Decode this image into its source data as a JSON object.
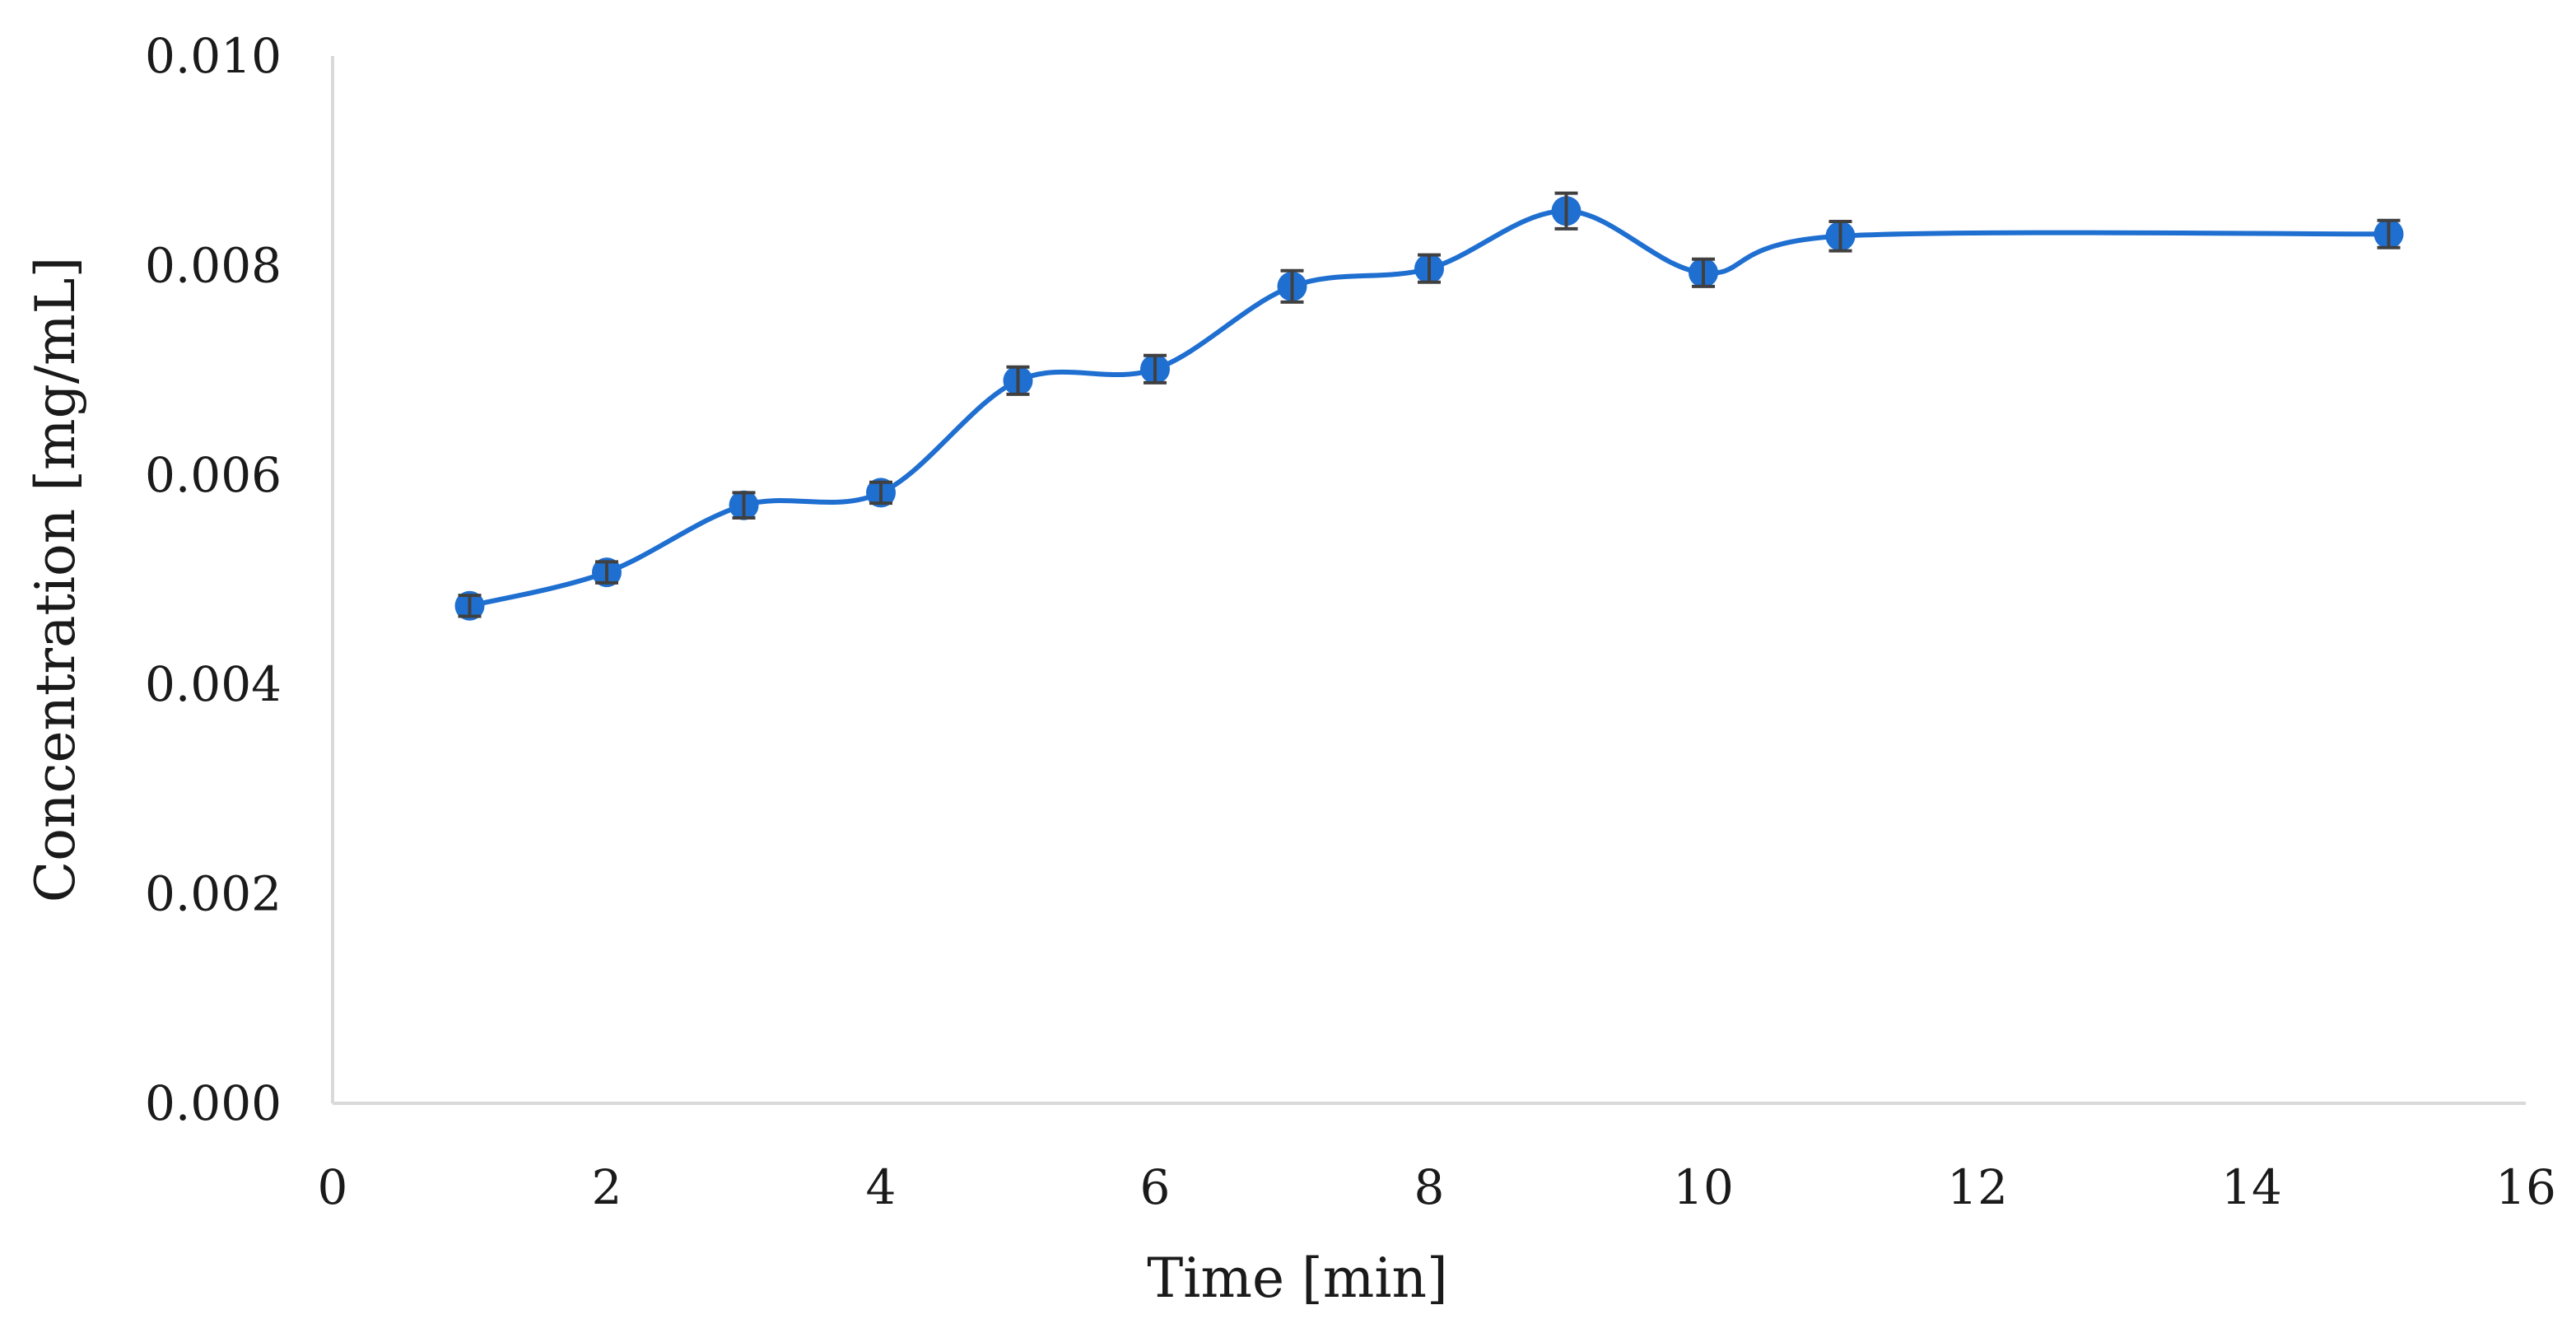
{
  "chart_data": {
    "type": "line",
    "title": "",
    "xlabel": "Time [min]",
    "ylabel": "Concentration [mg/mL]",
    "xlim": [
      0,
      16
    ],
    "ylim": [
      0.0,
      0.01
    ],
    "x_ticks": [
      "0",
      "2",
      "4",
      "6",
      "8",
      "10",
      "12",
      "14",
      "16"
    ],
    "y_ticks": [
      "0.000",
      "0.002",
      "0.004",
      "0.006",
      "0.008",
      "0.010"
    ],
    "grid": false,
    "legend": "none",
    "smoothed": true,
    "series": [
      {
        "color": "#1f6fd1",
        "x": [
          1,
          2,
          3,
          4,
          5,
          6,
          7,
          8,
          9,
          10,
          11,
          15
        ],
        "y": [
          0.00475,
          0.00507,
          0.00571,
          0.00583,
          0.0069,
          0.00701,
          0.0078,
          0.00797,
          0.00852,
          0.00793,
          0.00828,
          0.0083
        ],
        "error": [
          0.0001,
          0.0001,
          0.00012,
          0.0001,
          0.00013,
          0.00013,
          0.00015,
          0.00013,
          0.00017,
          0.00013,
          0.00014,
          0.00013
        ]
      }
    ]
  }
}
